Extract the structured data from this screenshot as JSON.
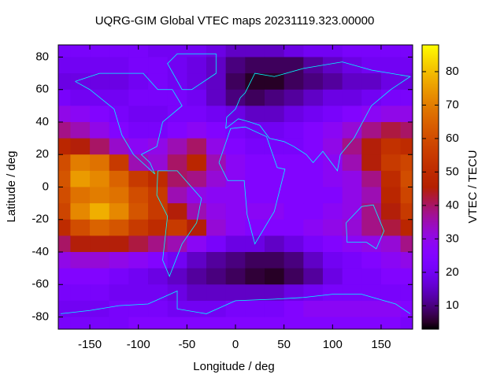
{
  "chart_data": {
    "type": "heatmap",
    "title": "UQRG-GIM Global VTEC maps 20231119.323.00000",
    "x_label": "Longitude / deg",
    "y_label": "Latitude / deg",
    "colorbar_label": "VTEC / TECU",
    "colormap": "gnuplot",
    "x": [
      -180,
      -160,
      -140,
      -120,
      -100,
      -80,
      -60,
      -40,
      -20,
      0,
      20,
      40,
      60,
      80,
      100,
      120,
      140,
      160,
      180
    ],
    "y": [
      85,
      75,
      65,
      55,
      45,
      35,
      25,
      15,
      5,
      -5,
      -15,
      -25,
      -35,
      -45,
      -55,
      -65,
      -75,
      -85
    ],
    "z": [
      [
        22,
        22,
        22,
        22,
        22,
        20,
        20,
        20,
        18,
        15,
        15,
        15,
        18,
        20,
        20,
        22,
        22,
        22,
        22
      ],
      [
        20,
        20,
        20,
        20,
        22,
        22,
        20,
        18,
        15,
        10,
        8,
        8,
        8,
        12,
        15,
        18,
        20,
        20,
        20
      ],
      [
        18,
        18,
        18,
        18,
        20,
        22,
        20,
        18,
        15,
        8,
        5,
        5,
        8,
        10,
        12,
        15,
        15,
        18,
        18
      ],
      [
        22,
        20,
        20,
        20,
        22,
        22,
        22,
        20,
        15,
        10,
        8,
        10,
        12,
        15,
        18,
        18,
        20,
        22,
        22
      ],
      [
        30,
        28,
        25,
        22,
        20,
        20,
        22,
        22,
        20,
        18,
        15,
        15,
        18,
        20,
        22,
        25,
        28,
        30,
        30
      ],
      [
        38,
        35,
        30,
        25,
        22,
        22,
        25,
        28,
        25,
        22,
        20,
        20,
        22,
        25,
        28,
        32,
        38,
        42,
        40
      ],
      [
        48,
        45,
        40,
        33,
        28,
        30,
        35,
        40,
        30,
        25,
        22,
        22,
        22,
        25,
        30,
        38,
        45,
        52,
        50
      ],
      [
        60,
        70,
        68,
        55,
        35,
        32,
        40,
        48,
        35,
        28,
        25,
        25,
        25,
        25,
        28,
        35,
        45,
        55,
        58
      ],
      [
        62,
        75,
        72,
        65,
        55,
        50,
        40,
        38,
        32,
        28,
        25,
        25,
        25,
        25,
        28,
        30,
        38,
        50,
        60
      ],
      [
        60,
        68,
        70,
        68,
        60,
        55,
        35,
        30,
        28,
        28,
        25,
        25,
        25,
        25,
        25,
        30,
        35,
        48,
        58
      ],
      [
        58,
        72,
        78,
        72,
        62,
        55,
        45,
        35,
        30,
        28,
        28,
        28,
        25,
        25,
        28,
        30,
        38,
        45,
        55
      ],
      [
        50,
        60,
        65,
        62,
        55,
        50,
        55,
        45,
        32,
        28,
        25,
        25,
        25,
        28,
        30,
        32,
        38,
        42,
        48
      ],
      [
        40,
        45,
        45,
        45,
        42,
        38,
        35,
        28,
        22,
        18,
        18,
        15,
        18,
        22,
        25,
        28,
        30,
        32,
        38
      ],
      [
        30,
        32,
        32,
        30,
        28,
        25,
        20,
        15,
        12,
        10,
        8,
        8,
        10,
        15,
        20,
        22,
        25,
        28,
        30
      ],
      [
        25,
        25,
        25,
        22,
        20,
        18,
        15,
        12,
        10,
        8,
        6,
        5,
        8,
        12,
        18,
        22,
        22,
        25,
        25
      ],
      [
        22,
        22,
        22,
        20,
        20,
        20,
        18,
        15,
        15,
        15,
        15,
        15,
        18,
        20,
        22,
        22,
        22,
        22,
        22
      ],
      [
        20,
        20,
        20,
        22,
        22,
        22,
        20,
        20,
        20,
        22,
        22,
        22,
        25,
        28,
        28,
        28,
        28,
        28,
        25
      ],
      [
        22,
        22,
        22,
        22,
        25,
        25,
        25,
        25,
        25,
        25,
        25,
        25,
        25,
        25,
        25,
        25,
        25,
        25,
        22
      ]
    ],
    "xlim": [
      -182.5,
      182.5
    ],
    "ylim": [
      -87.5,
      87.5
    ],
    "zlim": [
      3,
      88
    ],
    "xticks": [
      -150,
      -100,
      -50,
      0,
      50,
      100,
      150
    ],
    "yticks": [
      -80,
      -60,
      -40,
      -20,
      0,
      20,
      40,
      60,
      80
    ],
    "zticks": [
      10,
      20,
      30,
      40,
      50,
      60,
      70,
      80
    ]
  }
}
